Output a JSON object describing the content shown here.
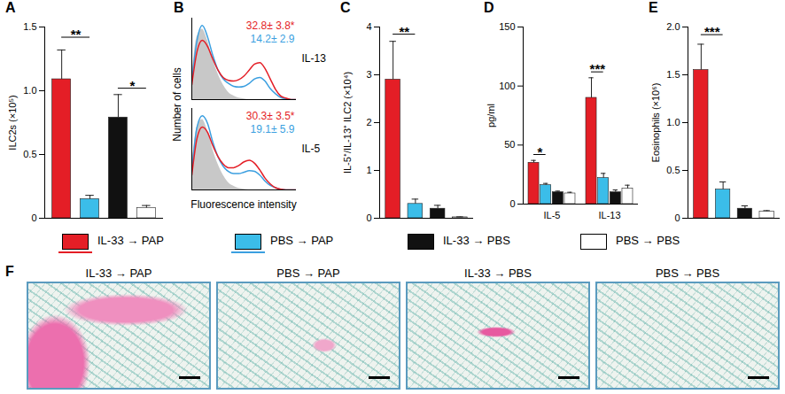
{
  "chart_data": [
    {
      "type": "bar",
      "title": "A",
      "ylabel": "ILC2s (×10⁵)",
      "categories": [
        null,
        null,
        null,
        null
      ],
      "values": [
        1.09,
        0.15,
        0.79,
        0.08
      ],
      "errors": [
        0.23,
        0.03,
        0.18,
        0.02
      ],
      "colors": [
        "#e41e26",
        "#3bbde9",
        "#111111",
        "#ffffff"
      ],
      "ylim": [
        0,
        1.5
      ],
      "yticks": [
        0,
        0.5,
        {
          "value": 1,
          "label": "1.0"
        },
        1.5
      ],
      "tick_labels": "y",
      "annotations": [
        {
          "text": "**",
          "from": 0,
          "to": 1,
          "y": 1.42
        },
        {
          "text": "*",
          "from": 2,
          "to": 3,
          "y": 1.02
        }
      ]
    },
    {
      "type": "line",
      "title": "B",
      "xlabel": "Fluorescence intensity",
      "ylabel": "Number of cells",
      "tick_labels": false,
      "xlim": [
        0,
        100
      ],
      "ylim": [
        0,
        110
      ],
      "panels": [
        {
          "name": "IL-13",
          "x": [
            0,
            5,
            10,
            15,
            20,
            25,
            30,
            35,
            40,
            45,
            50,
            55,
            60,
            65,
            70,
            75,
            80,
            85,
            90,
            95,
            100
          ],
          "series": [
            {
              "type": "area",
              "color": "#c8c8c8",
              "values": [
                30,
                85,
                95,
                80,
                55,
                35,
                20,
                10,
                5,
                2,
                1,
                0,
                0,
                0,
                0,
                0,
                0,
                0,
                0,
                0,
                0
              ]
            },
            {
              "name": "PBS → PAP",
              "color": "#3b9fe0",
              "values": [
                25,
                80,
                100,
                85,
                60,
                40,
                28,
                22,
                18,
                17,
                18,
                22,
                28,
                30,
                25,
                15,
                8,
                3,
                1,
                0,
                0
              ]
            },
            {
              "name": "IL-33 → PAP",
              "color": "#e41e26",
              "values": [
                20,
                65,
                80,
                72,
                55,
                40,
                30,
                26,
                25,
                27,
                32,
                40,
                48,
                50,
                42,
                28,
                14,
                5,
                2,
                0,
                0
              ]
            }
          ],
          "annotations": [
            {
              "text": "32.8± 3.8*",
              "color": "#e41e26"
            },
            {
              "text": "14.2± 2.9",
              "color": "#3b9fe0"
            }
          ]
        },
        {
          "name": "IL-5",
          "x": [
            0,
            5,
            10,
            15,
            20,
            25,
            30,
            35,
            40,
            45,
            50,
            55,
            60,
            65,
            70,
            75,
            80,
            85,
            90,
            95,
            100
          ],
          "series": [
            {
              "type": "area",
              "color": "#c8c8c8",
              "values": [
                30,
                85,
                95,
                80,
                55,
                35,
                20,
                10,
                5,
                2,
                1,
                0,
                0,
                0,
                0,
                0,
                0,
                0,
                0,
                0,
                0
              ]
            },
            {
              "name": "PBS → PAP",
              "color": "#3b9fe0",
              "values": [
                25,
                85,
                100,
                90,
                65,
                45,
                32,
                25,
                22,
                22,
                24,
                26,
                25,
                20,
                12,
                6,
                3,
                1,
                0,
                0,
                0
              ]
            },
            {
              "name": "IL-33 → PAP",
              "color": "#e41e26",
              "values": [
                20,
                70,
                85,
                78,
                60,
                45,
                35,
                30,
                30,
                33,
                38,
                40,
                36,
                27,
                16,
                8,
                3,
                1,
                0,
                0,
                0
              ]
            }
          ],
          "annotations": [
            {
              "text": "30.3± 3.5*",
              "color": "#e41e26"
            },
            {
              "text": "19.1± 5.9",
              "color": "#3b9fe0"
            }
          ]
        }
      ]
    },
    {
      "type": "bar",
      "title": "C",
      "ylabel": "IL-5⁺/IL-13⁺ ILC2 (×10⁴)",
      "categories": [
        null,
        null,
        null,
        null
      ],
      "values": [
        2.9,
        0.3,
        0.2,
        0.02
      ],
      "errors": [
        0.8,
        0.1,
        0.07,
        0.01
      ],
      "colors": [
        "#e41e26",
        "#3bbde9",
        "#111111",
        "#ffffff"
      ],
      "ylim": [
        0,
        4
      ],
      "yticks": [
        0,
        1,
        2,
        3,
        4
      ],
      "tick_labels": "y",
      "annotations": [
        {
          "text": "**",
          "from": 0,
          "to": 1,
          "y": 3.85
        }
      ]
    },
    {
      "type": "bar",
      "title": "D",
      "ylabel": "pg/ml",
      "categories": [
        "IL-5",
        "IL-13"
      ],
      "series": [
        {
          "name": "IL-33 → PAP",
          "color": "#e41e26",
          "values": [
            35,
            90
          ],
          "errors": [
            2,
            17
          ]
        },
        {
          "name": "PBS → PAP",
          "color": "#3bbde9",
          "values": [
            16,
            22
          ],
          "errors": [
            1.5,
            4
          ]
        },
        {
          "name": "IL-33 → PBS",
          "color": "#111111",
          "values": [
            10,
            10
          ],
          "errors": [
            1,
            2
          ]
        },
        {
          "name": "PBS → PBS",
          "color": "#ffffff",
          "values": [
            9,
            13
          ],
          "errors": [
            1,
            3
          ]
        }
      ],
      "ylim": [
        0,
        150
      ],
      "yticks": [
        0,
        50,
        100,
        150
      ],
      "annotations": [
        {
          "text": "*",
          "category": 0,
          "from": 0,
          "to": 1,
          "y": 42
        },
        {
          "text": "***",
          "category": 1,
          "from": 0,
          "to": 1,
          "y": 112
        }
      ]
    },
    {
      "type": "bar",
      "title": "E",
      "ylabel": "Eosinophils (×10⁶)",
      "categories": [
        null,
        null,
        null,
        null
      ],
      "values": [
        1.55,
        0.3,
        0.1,
        0.07
      ],
      "errors": [
        0.27,
        0.08,
        0.03,
        0.01
      ],
      "colors": [
        "#e41e26",
        "#3bbde9",
        "#111111",
        "#ffffff"
      ],
      "ylim": [
        0,
        2
      ],
      "yticks": [
        0,
        0.5,
        {
          "value": 1,
          "label": "1.0"
        },
        1.5,
        {
          "value": 2,
          "label": "2.0"
        }
      ],
      "tick_labels": "y",
      "annotations": [
        {
          "text": "***",
          "from": 0,
          "to": 1,
          "y": 1.92
        }
      ]
    }
  ],
  "key": [
    {
      "name": "IL-33 → PAP",
      "color": "#e41e26"
    },
    {
      "name": "PBS → PAP",
      "color": "#3bbde9"
    },
    {
      "name": "IL-33 → PBS",
      "color": "#111111"
    },
    {
      "name": "PBS → PBS",
      "color": "#ffffff"
    }
  ],
  "images": {
    "title": "F",
    "panels": [
      "IL-33 → PAP",
      "PBS → PAP",
      "IL-33 → PBS",
      "PBS → PBS"
    ]
  }
}
